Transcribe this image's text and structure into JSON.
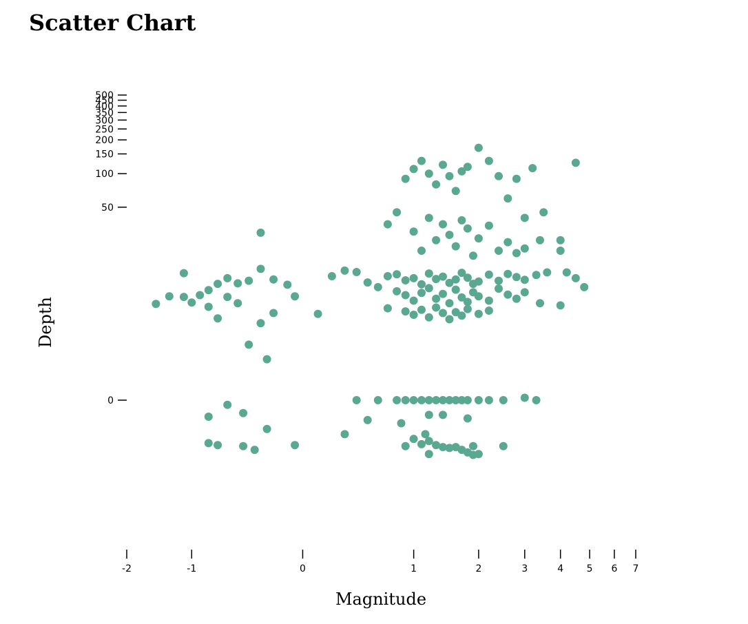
{
  "title": "Scatter Chart",
  "chart_data": {
    "type": "scatter",
    "title": "Scatter Chart",
    "xlabel": "Magnitude",
    "ylabel": "Depth",
    "x_scale": "symlog",
    "y_scale": "symlog",
    "xlim": [
      -2,
      7
    ],
    "ylim": [
      -3,
      500
    ],
    "x_ticks": [
      -2,
      -1,
      0,
      1,
      2,
      3,
      4,
      5,
      6,
      7
    ],
    "y_ticks": [
      0,
      50,
      100,
      150,
      200,
      250,
      300,
      350,
      400,
      450,
      500
    ],
    "grid": false,
    "point_color": "#5ba892",
    "points": [
      [
        -1.5,
        6.1
      ],
      [
        -1.3,
        7.3
      ],
      [
        -1.1,
        7.2
      ],
      [
        -1.0,
        6.3
      ],
      [
        -0.9,
        7.5
      ],
      [
        -0.8,
        8.4
      ],
      [
        -0.7,
        9.7
      ],
      [
        -0.6,
        7.2
      ],
      [
        -0.5,
        9.8
      ],
      [
        -0.4,
        10.4
      ],
      [
        -0.3,
        13.5
      ],
      [
        -0.2,
        10.7
      ],
      [
        -0.1,
        9.5
      ],
      [
        -0.05,
        7.3
      ],
      [
        -0.3,
        29.3
      ],
      [
        -0.8,
        5.7
      ],
      [
        -0.7,
        4.3
      ],
      [
        -0.5,
        6.2
      ],
      [
        -0.3,
        3.8
      ],
      [
        -0.2,
        4.9
      ],
      [
        -0.4,
        2.1
      ],
      [
        -0.25,
        1.3
      ],
      [
        -0.8,
        -0.4
      ],
      [
        -0.6,
        -0.1
      ],
      [
        -0.45,
        -0.3
      ],
      [
        -0.25,
        -0.8
      ],
      [
        -0.8,
        -1.4
      ],
      [
        -0.7,
        -1.5
      ],
      [
        -0.45,
        -1.55
      ],
      [
        -0.35,
        -1.75
      ],
      [
        -0.05,
        -1.5
      ],
      [
        -1.1,
        12.3
      ],
      [
        -0.6,
        11.0
      ],
      [
        0.1,
        4.8
      ],
      [
        0.2,
        11.5
      ],
      [
        0.3,
        13.0
      ],
      [
        0.4,
        12.6
      ],
      [
        0.5,
        10.0
      ],
      [
        0.6,
        9.0
      ],
      [
        0.7,
        11.5
      ],
      [
        0.8,
        12.0
      ],
      [
        0.9,
        10.5
      ],
      [
        1.0,
        11.0
      ],
      [
        1.1,
        9.6
      ],
      [
        1.2,
        12.2
      ],
      [
        1.3,
        10.8
      ],
      [
        1.4,
        11.4
      ],
      [
        1.5,
        9.9
      ],
      [
        1.6,
        10.7
      ],
      [
        1.7,
        12.4
      ],
      [
        1.8,
        11.1
      ],
      [
        1.9,
        9.7
      ],
      [
        2.0,
        10.2
      ],
      [
        2.2,
        11.9
      ],
      [
        2.4,
        10.4
      ],
      [
        2.6,
        12.1
      ],
      [
        2.8,
        11.3
      ],
      [
        3.0,
        10.6
      ],
      [
        3.3,
        11.8
      ],
      [
        3.6,
        12.5
      ],
      [
        4.2,
        12.5
      ],
      [
        4.5,
        11.0
      ],
      [
        4.8,
        9.0
      ],
      [
        0.8,
        8.2
      ],
      [
        0.9,
        7.5
      ],
      [
        1.0,
        6.6
      ],
      [
        1.1,
        7.9
      ],
      [
        1.2,
        8.8
      ],
      [
        1.3,
        6.9
      ],
      [
        1.4,
        7.7
      ],
      [
        1.5,
        6.2
      ],
      [
        1.6,
        8.5
      ],
      [
        1.7,
        7.1
      ],
      [
        1.8,
        6.4
      ],
      [
        1.9,
        8.0
      ],
      [
        2.0,
        7.3
      ],
      [
        2.2,
        6.6
      ],
      [
        2.4,
        8.7
      ],
      [
        2.6,
        7.6
      ],
      [
        2.8,
        6.9
      ],
      [
        3.0,
        8.0
      ],
      [
        3.4,
        6.2
      ],
      [
        4.0,
        5.9
      ],
      [
        0.7,
        5.5
      ],
      [
        0.9,
        5.1
      ],
      [
        1.0,
        4.7
      ],
      [
        1.1,
        5.3
      ],
      [
        1.2,
        4.4
      ],
      [
        1.3,
        5.6
      ],
      [
        1.4,
        4.9
      ],
      [
        1.5,
        4.2
      ],
      [
        1.6,
        5.0
      ],
      [
        1.7,
        4.6
      ],
      [
        1.8,
        5.4
      ],
      [
        2.0,
        4.8
      ],
      [
        2.2,
        5.2
      ],
      [
        0.8,
        0
      ],
      [
        0.9,
        0
      ],
      [
        1.0,
        0
      ],
      [
        1.1,
        0
      ],
      [
        1.2,
        0
      ],
      [
        1.3,
        0
      ],
      [
        1.4,
        0
      ],
      [
        1.5,
        0
      ],
      [
        1.6,
        0
      ],
      [
        1.7,
        0
      ],
      [
        1.8,
        0
      ],
      [
        2.0,
        0
      ],
      [
        2.2,
        0
      ],
      [
        2.5,
        0
      ],
      [
        0.6,
        0
      ],
      [
        0.4,
        0
      ],
      [
        3.0,
        0.05
      ],
      [
        3.3,
        0
      ],
      [
        0.5,
        -0.5
      ],
      [
        0.85,
        -0.6
      ],
      [
        1.2,
        -0.35
      ],
      [
        1.4,
        -0.35
      ],
      [
        1.8,
        -0.45
      ],
      [
        1.0,
        -1.2
      ],
      [
        1.1,
        -1.45
      ],
      [
        1.2,
        -1.3
      ],
      [
        1.3,
        -1.5
      ],
      [
        1.4,
        -1.6
      ],
      [
        1.5,
        -1.65
      ],
      [
        1.6,
        -1.6
      ],
      [
        1.7,
        -1.75
      ],
      [
        1.8,
        -1.9
      ],
      [
        1.9,
        -2.05
      ],
      [
        2.0,
        -2.0
      ],
      [
        1.2,
        -2.0
      ],
      [
        1.9,
        -1.55
      ],
      [
        2.5,
        -1.55
      ],
      [
        1.15,
        -1.0
      ],
      [
        0.9,
        -1.55
      ],
      [
        0.3,
        -1.0
      ],
      [
        0.7,
        35
      ],
      [
        0.8,
        45
      ],
      [
        0.9,
        90
      ],
      [
        1.0,
        110
      ],
      [
        1.1,
        130
      ],
      [
        1.2,
        100
      ],
      [
        1.3,
        80
      ],
      [
        1.4,
        120
      ],
      [
        1.5,
        95
      ],
      [
        1.6,
        70
      ],
      [
        1.7,
        105
      ],
      [
        1.8,
        115
      ],
      [
        2.0,
        170
      ],
      [
        2.2,
        130
      ],
      [
        2.4,
        95
      ],
      [
        2.6,
        60
      ],
      [
        2.8,
        90
      ],
      [
        3.0,
        40
      ],
      [
        3.2,
        112
      ],
      [
        3.5,
        45
      ],
      [
        4.5,
        125
      ],
      [
        1.0,
        30
      ],
      [
        1.1,
        20
      ],
      [
        1.2,
        40
      ],
      [
        1.3,
        25
      ],
      [
        1.4,
        35
      ],
      [
        1.5,
        28
      ],
      [
        1.6,
        22
      ],
      [
        1.7,
        38
      ],
      [
        1.8,
        32
      ],
      [
        1.9,
        18
      ],
      [
        2.0,
        26
      ],
      [
        2.2,
        34
      ],
      [
        2.4,
        20
      ],
      [
        2.6,
        24
      ],
      [
        2.8,
        19
      ],
      [
        3.0,
        21
      ],
      [
        3.4,
        25
      ],
      [
        4.0,
        25
      ],
      [
        4.0,
        20
      ]
    ]
  }
}
